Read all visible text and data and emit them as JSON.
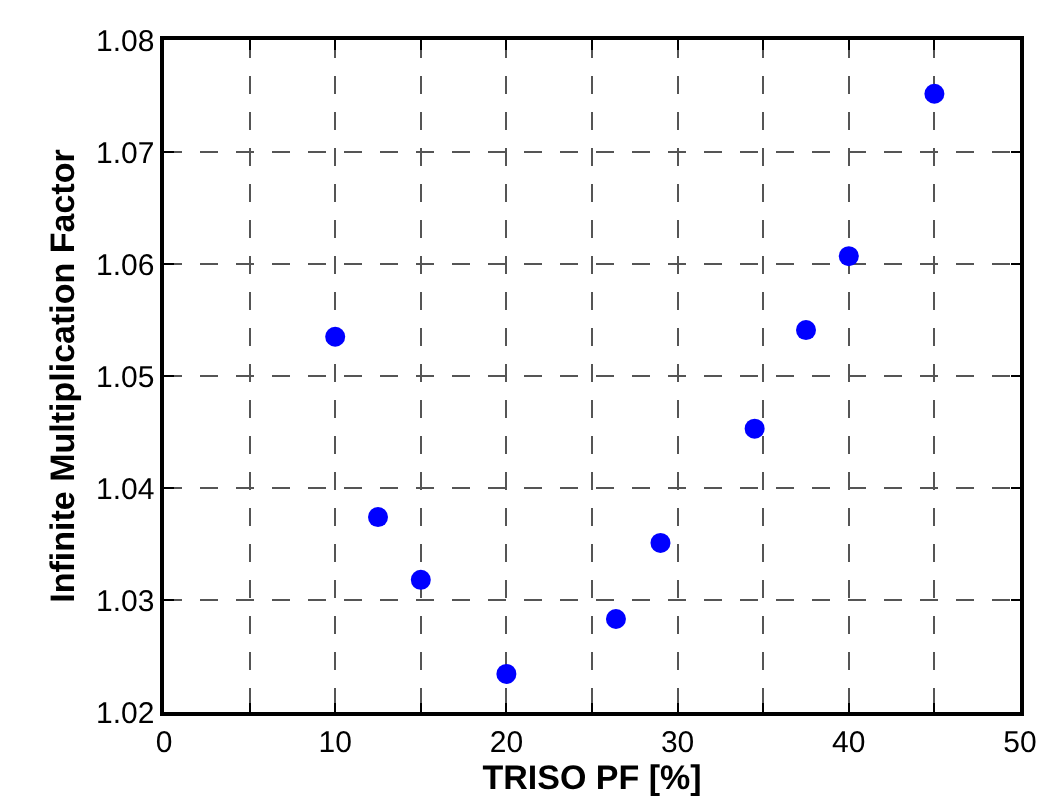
{
  "chart_data": {
    "type": "scatter",
    "xlabel": "TRISO PF [%]",
    "ylabel": "Infinite Multiplication Factor",
    "x": [
      10,
      12.5,
      15,
      20,
      26.4,
      29,
      34.5,
      37.5,
      40,
      45
    ],
    "series": [
      {
        "color": "#0000ff",
        "values": [
          1.0535,
          1.0374,
          1.0318,
          1.0234,
          1.0283,
          1.0351,
          1.0453,
          1.0541,
          1.0607,
          1.0752
        ]
      }
    ],
    "xlim": [
      0,
      50
    ],
    "xticks": [
      0,
      {
        "value": 5,
        "label": null
      },
      10,
      {
        "value": 15,
        "label": null
      },
      20,
      {
        "value": 25,
        "label": null
      },
      30,
      {
        "value": 35,
        "label": null
      },
      40,
      {
        "value": 45,
        "label": null
      },
      50
    ],
    "ylim": [
      1.02,
      1.08
    ],
    "yticks": [
      1.02,
      1.03,
      1.04,
      1.05,
      1.06,
      1.07,
      1.08
    ],
    "grid": true,
    "marker": "circle"
  }
}
